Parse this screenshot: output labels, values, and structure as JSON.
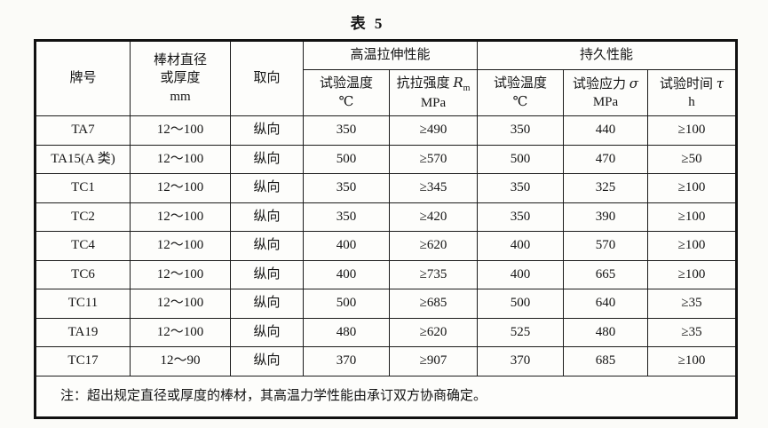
{
  "title": "表 5",
  "table": {
    "header": {
      "grade": "牌号",
      "diameter_line1": "棒材直径",
      "diameter_line2": "或厚度",
      "diameter_line3": "mm",
      "orientation": "取向",
      "group_tensile": "高温拉伸性能",
      "group_endurance": "持久性能",
      "sub": [
        {
          "name": "试验温度",
          "unit": "℃"
        },
        {
          "name": "抗拉强度 ",
          "symbol": "R",
          "symbol_sub": "m",
          "unit": "MPa"
        },
        {
          "name": "试验温度",
          "unit": "℃"
        },
        {
          "name": "试验应力 ",
          "symbol": "σ",
          "unit": "MPa"
        },
        {
          "name": "试验时间 ",
          "symbol": "τ",
          "unit": "h"
        }
      ]
    },
    "rows": [
      [
        "TA7",
        "12～100",
        "纵向",
        "350",
        "≥490",
        "350",
        "440",
        "≥100"
      ],
      [
        "TA15(A 类)",
        "12～100",
        "纵向",
        "500",
        "≥570",
        "500",
        "470",
        "≥50"
      ],
      [
        "TC1",
        "12～100",
        "纵向",
        "350",
        "≥345",
        "350",
        "325",
        "≥100"
      ],
      [
        "TC2",
        "12～100",
        "纵向",
        "350",
        "≥420",
        "350",
        "390",
        "≥100"
      ],
      [
        "TC4",
        "12～100",
        "纵向",
        "400",
        "≥620",
        "400",
        "570",
        "≥100"
      ],
      [
        "TC6",
        "12～100",
        "纵向",
        "400",
        "≥735",
        "400",
        "665",
        "≥100"
      ],
      [
        "TC11",
        "12～100",
        "纵向",
        "500",
        "≥685",
        "500",
        "640",
        "≥35"
      ],
      [
        "TA19",
        "12～100",
        "纵向",
        "480",
        "≥620",
        "525",
        "480",
        "≥35"
      ],
      [
        "TC17",
        "12～90",
        "纵向",
        "370",
        "≥907",
        "370",
        "685",
        "≥100"
      ]
    ],
    "note": "注：超出规定直径或厚度的棒材，其高温力学性能由承订双方协商确定。"
  }
}
